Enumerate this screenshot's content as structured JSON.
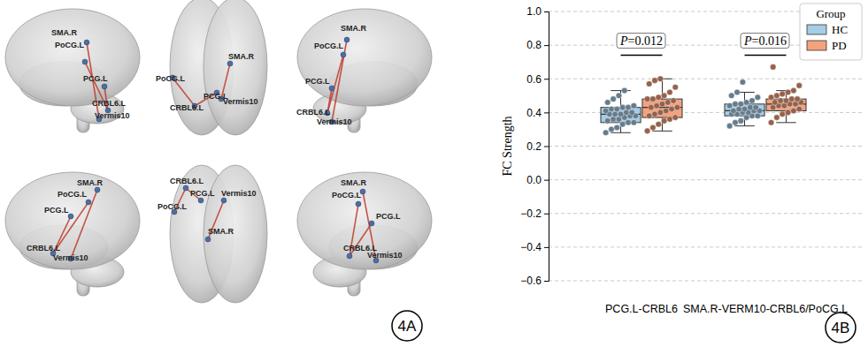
{
  "panel_labels": [
    "4A",
    "4B"
  ],
  "brain_network": {
    "views": [
      {
        "labels": [
          "SMA.R",
          "PoCG.L",
          "PCG.L",
          "CRBL6.L",
          "Vermis10"
        ]
      },
      {
        "labels": [
          "SMA.R",
          "PoCG.L",
          "PCG.L",
          "CRBL6.L",
          "Vermis10"
        ]
      },
      {
        "labels": [
          "SMA.R",
          "PoCG.L",
          "PCG.L",
          "CRBL6.L",
          "Vermis10"
        ]
      },
      {
        "labels": [
          "SMA.R",
          "PoCG.L",
          "PCG.L",
          "CRBL6.L",
          "Vermis10"
        ]
      },
      {
        "labels": [
          "SMA.R",
          "PoCG.L",
          "PCG.L",
          "CRBL6.L",
          "Vermis10"
        ]
      },
      {
        "labels": [
          "SMA.R",
          "PoCG.L",
          "PCG.L",
          "CRBL6.L",
          "Vermis10"
        ]
      }
    ],
    "edges": [
      [
        2,
        3
      ],
      [
        0,
        4
      ],
      [
        1,
        3
      ]
    ]
  },
  "chart_data": {
    "type": "box",
    "ylabel": "FC Strength",
    "categories": [
      "PCG.L-CRBL6",
      "SMA.R-VERM10-CRBL6/PoCG.L"
    ],
    "series": [
      {
        "name": "HC",
        "color": "#a6cde6",
        "stats": [
          {
            "q1": 0.34,
            "median": 0.39,
            "q3": 0.43,
            "whisker_low": 0.28,
            "whisker_high": 0.53
          },
          {
            "q1": 0.38,
            "median": 0.41,
            "q3": 0.45,
            "whisker_low": 0.32,
            "whisker_high": 0.52
          }
        ],
        "points": [
          [
            0.28,
            0.3,
            0.31,
            0.33,
            0.34,
            0.34,
            0.35,
            0.36,
            0.36,
            0.37,
            0.38,
            0.38,
            0.39,
            0.39,
            0.39,
            0.4,
            0.4,
            0.41,
            0.42,
            0.42,
            0.43,
            0.43,
            0.44,
            0.46,
            0.48,
            0.5,
            0.53
          ],
          [
            0.32,
            0.34,
            0.35,
            0.37,
            0.38,
            0.38,
            0.39,
            0.39,
            0.4,
            0.4,
            0.41,
            0.41,
            0.41,
            0.42,
            0.42,
            0.43,
            0.43,
            0.44,
            0.45,
            0.45,
            0.46,
            0.47,
            0.49,
            0.5,
            0.52,
            0.58
          ]
        ]
      },
      {
        "name": "PD",
        "color": "#f4a27e",
        "stats": [
          {
            "q1": 0.37,
            "median": 0.43,
            "q3": 0.48,
            "whisker_low": 0.29,
            "whisker_high": 0.6
          },
          {
            "q1": 0.41,
            "median": 0.45,
            "q3": 0.48,
            "whisker_low": 0.34,
            "whisker_high": 0.53
          }
        ],
        "points": [
          [
            0.29,
            0.31,
            0.33,
            0.35,
            0.36,
            0.37,
            0.38,
            0.39,
            0.4,
            0.41,
            0.42,
            0.43,
            0.43,
            0.44,
            0.45,
            0.46,
            0.47,
            0.48,
            0.48,
            0.49,
            0.5,
            0.52,
            0.55,
            0.57,
            0.59,
            0.6
          ],
          [
            0.34,
            0.37,
            0.39,
            0.4,
            0.41,
            0.42,
            0.43,
            0.44,
            0.44,
            0.45,
            0.45,
            0.46,
            0.46,
            0.47,
            0.47,
            0.48,
            0.48,
            0.49,
            0.5,
            0.51,
            0.52,
            0.53,
            0.56,
            0.67
          ]
        ]
      }
    ],
    "annotations": [
      {
        "text": "P=0.012",
        "x": "PCG.L-CRBL6",
        "y": 0.74
      },
      {
        "text": "P=0.016",
        "x": "SMA.R-VERM10-CRBL6/PoCG.L",
        "y": 0.74
      }
    ],
    "ylim": [
      -0.6,
      1.0
    ],
    "yticks": [
      {
        "value": -0.6,
        "label": "−0.6"
      },
      {
        "value": -0.4,
        "label": "−0.4"
      },
      {
        "value": -0.2,
        "label": "−0.2"
      },
      {
        "value": 0,
        "label": "0.0"
      },
      0.2,
      0.4,
      0.6,
      0.8,
      {
        "value": 1.0,
        "label": "1.0"
      }
    ],
    "grid": true,
    "legend": "upper right",
    "legend_title": "Group"
  }
}
